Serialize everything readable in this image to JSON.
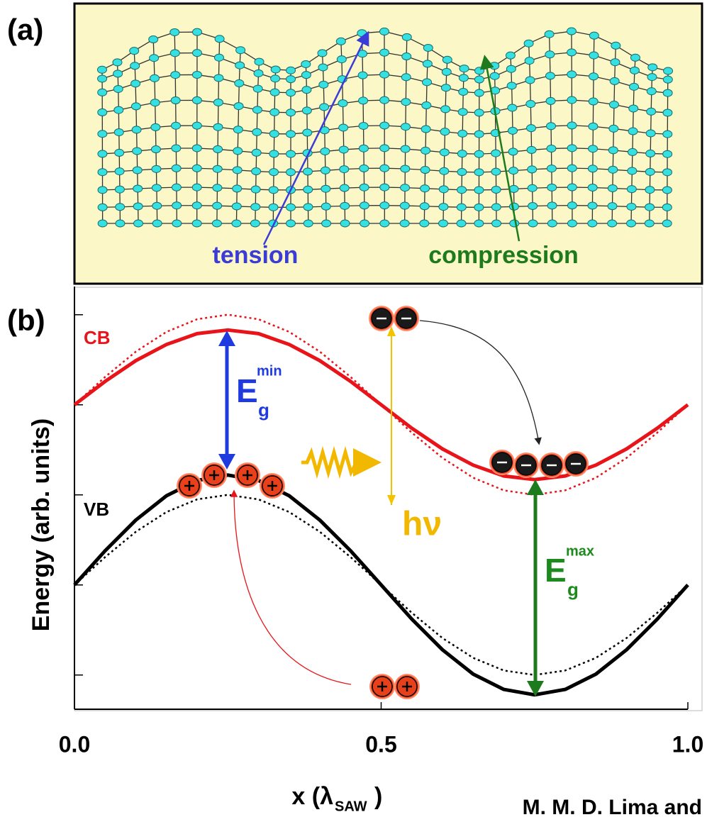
{
  "panel_a": {
    "label": "(a)",
    "tension": "tension",
    "compression": "compression"
  },
  "chart_data": {
    "type": "line",
    "label": "(b)",
    "x": [
      0,
      0.05,
      0.1,
      0.15,
      0.2,
      0.25,
      0.3,
      0.35,
      0.4,
      0.45,
      0.5,
      0.55,
      0.6,
      0.65,
      0.7,
      0.75,
      0.8,
      0.85,
      0.9,
      0.95,
      1
    ],
    "series": [
      {
        "color": "#e8141a",
        "style": "solid",
        "values": [
          3,
          3.26,
          3.49,
          3.67,
          3.79,
          3.83,
          3.79,
          3.67,
          3.49,
          3.26,
          3,
          2.74,
          2.51,
          2.33,
          2.21,
          2.17,
          2.21,
          2.33,
          2.51,
          2.74,
          3
        ]
      },
      {
        "color": "#e8141a",
        "style": "dotted",
        "values": [
          3,
          3.31,
          3.59,
          3.81,
          3.95,
          4,
          3.95,
          3.81,
          3.59,
          3.31,
          3,
          2.69,
          2.41,
          2.19,
          2.05,
          2,
          2.05,
          2.19,
          2.41,
          2.69,
          3
        ]
      },
      {
        "color": "#000000",
        "style": "solid",
        "values": [
          1,
          1.38,
          1.72,
          1.99,
          2.16,
          2.22,
          2.16,
          1.99,
          1.72,
          1.38,
          1,
          0.62,
          0.28,
          0.01,
          -0.16,
          -0.22,
          -0.16,
          0.01,
          0.28,
          0.62,
          1
        ]
      },
      {
        "color": "#000000",
        "style": "dotted",
        "values": [
          1,
          1.31,
          1.59,
          1.81,
          1.95,
          2,
          1.95,
          1.81,
          1.59,
          1.31,
          1,
          0.69,
          0.41,
          0.19,
          0.05,
          0,
          0.05,
          0.19,
          0.41,
          0.69,
          1
        ]
      }
    ],
    "xlabel": {
      "main": "x (λ",
      "sub": "SAW",
      "end": ")"
    },
    "ylabel": "Energy (arb. units)",
    "xlim": [
      0,
      1
    ],
    "xticks": [
      {
        "value": 0,
        "label": "0.0"
      },
      0.5,
      {
        "value": 1,
        "label": "1.0"
      }
    ],
    "ylim": [
      -0.38,
      4.25
    ],
    "yticks": [
      0,
      1,
      2,
      3,
      4
    ],
    "annotations": {
      "cb": "CB",
      "vb": "VB",
      "eg_min": {
        "main": "E",
        "sub": "g",
        "sup": "min"
      },
      "eg_max": {
        "main": "E",
        "sub": "g",
        "sup": "max"
      },
      "photon": "hν"
    }
  },
  "caption": "M. M. D. Lima and"
}
